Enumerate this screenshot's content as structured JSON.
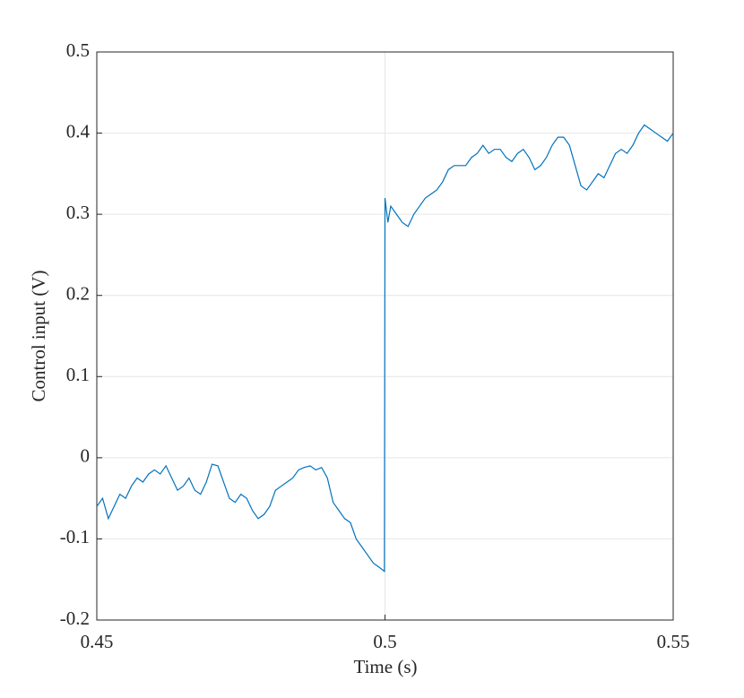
{
  "chart_data": {
    "type": "line",
    "xlabel": "Time (s)",
    "ylabel": "Control input (V)",
    "xlim": [
      0.45,
      0.55
    ],
    "xticks": [
      0.45,
      0.5,
      0.55
    ],
    "ylim": [
      -0.2,
      0.5
    ],
    "yticks": [
      -0.2,
      -0.1,
      0,
      0.1,
      0.2,
      0.3,
      0.4,
      0.5
    ],
    "grid": true,
    "color": "#0072bd",
    "x": [
      0.45,
      0.451,
      0.452,
      0.453,
      0.454,
      0.455,
      0.456,
      0.457,
      0.458,
      0.459,
      0.46,
      0.461,
      0.462,
      0.463,
      0.464,
      0.465,
      0.466,
      0.467,
      0.468,
      0.469,
      0.47,
      0.471,
      0.472,
      0.473,
      0.474,
      0.475,
      0.476,
      0.477,
      0.478,
      0.479,
      0.48,
      0.481,
      0.482,
      0.483,
      0.484,
      0.485,
      0.486,
      0.487,
      0.488,
      0.489,
      0.49,
      0.491,
      0.492,
      0.493,
      0.494,
      0.495,
      0.496,
      0.497,
      0.498,
      0.499,
      0.4999,
      0.5,
      0.5005,
      0.501,
      0.502,
      0.503,
      0.504,
      0.505,
      0.506,
      0.507,
      0.508,
      0.509,
      0.51,
      0.511,
      0.512,
      0.513,
      0.514,
      0.515,
      0.516,
      0.517,
      0.518,
      0.519,
      0.52,
      0.521,
      0.522,
      0.523,
      0.524,
      0.525,
      0.526,
      0.527,
      0.528,
      0.529,
      0.53,
      0.531,
      0.532,
      0.533,
      0.534,
      0.535,
      0.536,
      0.537,
      0.538,
      0.539,
      0.54,
      0.541,
      0.542,
      0.543,
      0.544,
      0.545,
      0.546,
      0.547,
      0.548,
      0.549,
      0.55
    ],
    "values": [
      -0.06,
      -0.05,
      -0.075,
      -0.06,
      -0.045,
      -0.05,
      -0.035,
      -0.025,
      -0.03,
      -0.02,
      -0.015,
      -0.02,
      -0.01,
      -0.025,
      -0.04,
      -0.035,
      -0.025,
      -0.04,
      -0.045,
      -0.03,
      -0.008,
      -0.01,
      -0.03,
      -0.05,
      -0.055,
      -0.045,
      -0.05,
      -0.065,
      -0.075,
      -0.07,
      -0.06,
      -0.04,
      -0.035,
      -0.03,
      -0.025,
      -0.015,
      -0.012,
      -0.01,
      -0.015,
      -0.012,
      -0.025,
      -0.055,
      -0.065,
      -0.075,
      -0.08,
      -0.1,
      -0.11,
      -0.12,
      -0.13,
      -0.135,
      -0.14,
      0.32,
      0.29,
      0.31,
      0.3,
      0.29,
      0.285,
      0.3,
      0.31,
      0.32,
      0.325,
      0.33,
      0.34,
      0.355,
      0.36,
      0.36,
      0.36,
      0.37,
      0.375,
      0.385,
      0.375,
      0.38,
      0.38,
      0.37,
      0.365,
      0.375,
      0.38,
      0.37,
      0.355,
      0.36,
      0.37,
      0.385,
      0.395,
      0.395,
      0.385,
      0.36,
      0.335,
      0.33,
      0.34,
      0.35,
      0.345,
      0.36,
      0.375,
      0.38,
      0.375,
      0.385,
      0.4,
      0.41,
      0.405,
      0.4,
      0.395,
      0.39,
      0.4
    ]
  }
}
